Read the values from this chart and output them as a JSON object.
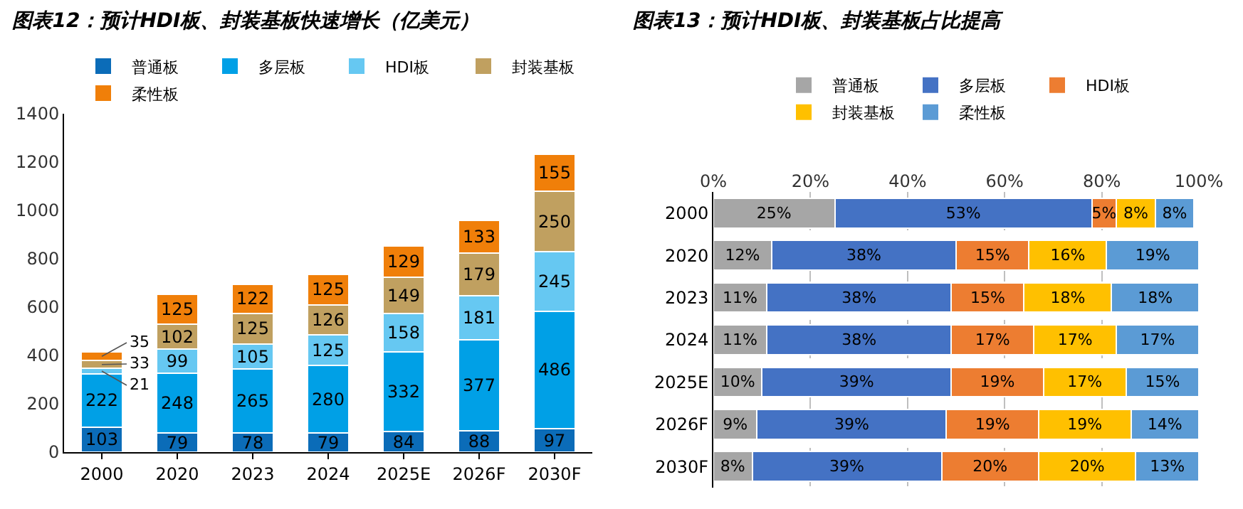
{
  "chart_data": [
    {
      "type": "bar",
      "title": "图表12：预计HDI板、封装基板快速增长（亿美元）",
      "categories": [
        "2000",
        "2020",
        "2023",
        "2024",
        "2025E",
        "2026F",
        "2030F"
      ],
      "stacked": true,
      "data_labels": true,
      "legend": "top",
      "grid": false,
      "ylim": [
        0,
        1400
      ],
      "yticks": [
        0,
        200,
        400,
        600,
        800,
        1000,
        1200,
        1400
      ],
      "series": [
        {
          "name": "普通板",
          "color": "#0b6cb8",
          "values": [
            103,
            79,
            78,
            79,
            84,
            88,
            97
          ]
        },
        {
          "name": "多层板",
          "color": "#00a0e6",
          "values": [
            222,
            248,
            265,
            280,
            332,
            377,
            486
          ]
        },
        {
          "name": "HDI板",
          "color": "#66c8f2",
          "values": [
            21,
            99,
            105,
            125,
            158,
            181,
            245
          ]
        },
        {
          "name": "封装基板",
          "color": "#c0a060",
          "values": [
            33,
            102,
            125,
            126,
            149,
            179,
            250
          ]
        },
        {
          "name": "柔性板",
          "color": "#f07f09",
          "values": [
            35,
            125,
            122,
            125,
            129,
            133,
            155
          ]
        }
      ]
    },
    {
      "type": "bar",
      "title": "图表13：预计HDI板、封装基板占比提高",
      "orientation": "horizontal",
      "categories": [
        "2000",
        "2020",
        "2023",
        "2024",
        "2025E",
        "2026F",
        "2030F"
      ],
      "stacked": true,
      "legend": "top",
      "grid": "x",
      "xlim": [
        0,
        100
      ],
      "xticks": [
        {
          "value": 0,
          "label": "0%"
        },
        {
          "value": 20,
          "label": "20%"
        },
        {
          "value": 40,
          "label": "40%"
        },
        {
          "value": 60,
          "label": "60%"
        },
        {
          "value": 80,
          "label": "80%"
        },
        {
          "value": 100,
          "label": "100%"
        }
      ],
      "series": [
        {
          "name": "普通板",
          "color": "#a6a6a6",
          "values": [
            25,
            12,
            11,
            11,
            10,
            9,
            8
          ],
          "value_labels": [
            "25%",
            "12%",
            "11%",
            "11%",
            "10%",
            "9%",
            "8%"
          ]
        },
        {
          "name": "多层板",
          "color": "#4472c4",
          "values": [
            53,
            38,
            38,
            38,
            39,
            39,
            39
          ],
          "value_labels": [
            "53%",
            "38%",
            "38%",
            "38%",
            "39%",
            "39%",
            "39%"
          ]
        },
        {
          "name": "HDI板",
          "color": "#ed7d31",
          "values": [
            5,
            15,
            15,
            17,
            19,
            19,
            20
          ],
          "value_labels": [
            "5%",
            "15%",
            "15%",
            "17%",
            "19%",
            "19%",
            "20%"
          ]
        },
        {
          "name": "封装基板",
          "color": "#ffc000",
          "values": [
            8,
            16,
            18,
            17,
            17,
            19,
            20
          ],
          "value_labels": [
            "8%",
            "16%",
            "18%",
            "17%",
            "17%",
            "19%",
            "20%"
          ]
        },
        {
          "name": "柔性板",
          "color": "#5b9bd5",
          "values": [
            8,
            19,
            18,
            17,
            15,
            14,
            13
          ],
          "value_labels": [
            "8%",
            "19%",
            "18%",
            "17%",
            "15%",
            "14%",
            "13%"
          ]
        }
      ]
    }
  ]
}
